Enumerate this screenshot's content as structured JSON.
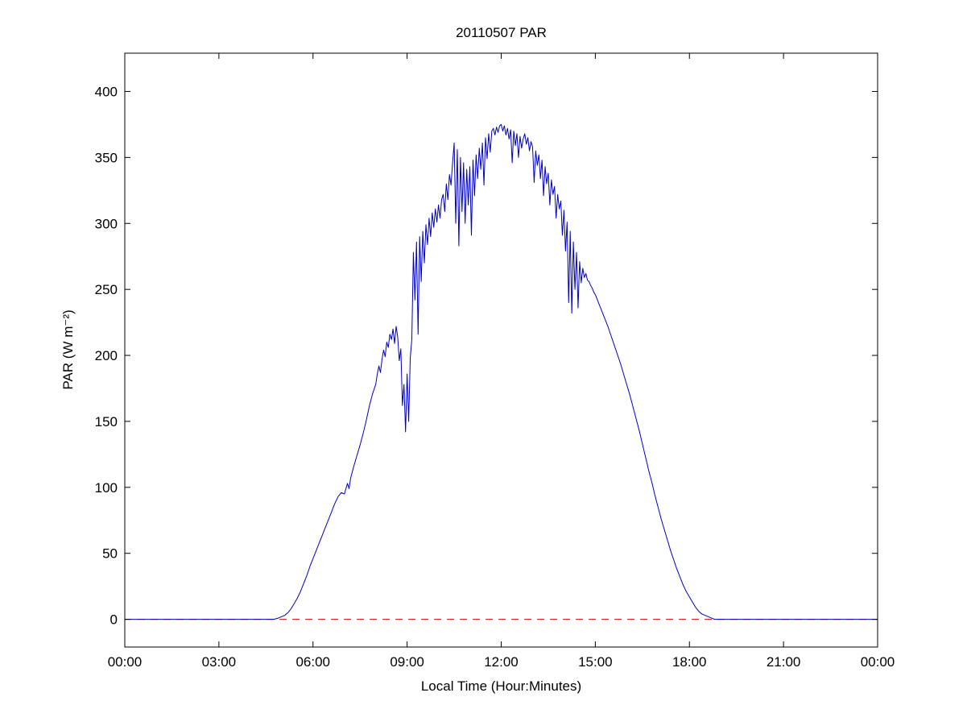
{
  "chart_data": {
    "type": "line",
    "title": "20110507 PAR",
    "xlabel": "Local Time (Hour:Minutes)",
    "ylabel": "PAR (W m⁻²)",
    "xlim": [
      0,
      24
    ],
    "ylim": [
      -21,
      429
    ],
    "grid": false,
    "legend": "none",
    "x_ticks": [
      0,
      3,
      6,
      9,
      12,
      15,
      18,
      21,
      24
    ],
    "x_tick_labels": [
      "00:00",
      "03:00",
      "06:00",
      "09:00",
      "12:00",
      "15:00",
      "18:00",
      "21:00",
      "00:00"
    ],
    "y_ticks": [
      0,
      50,
      100,
      150,
      200,
      250,
      300,
      350,
      400
    ],
    "y_tick_labels": [
      "0",
      "50",
      "100",
      "150",
      "200",
      "250",
      "300",
      "350",
      "400"
    ],
    "reference_lines": [
      {
        "y": 0,
        "color": "#dd0000",
        "style": "dashed",
        "name": "zero-line"
      }
    ],
    "series": [
      {
        "name": "PAR",
        "color": "#0000c0",
        "x_units": "hours",
        "points": [
          [
            0,
            0
          ],
          [
            0.25,
            0
          ],
          [
            0.5,
            0
          ],
          [
            0.75,
            0
          ],
          [
            1,
            0
          ],
          [
            1.25,
            0
          ],
          [
            1.5,
            0
          ],
          [
            1.75,
            0
          ],
          [
            2,
            0
          ],
          [
            2.25,
            0
          ],
          [
            2.5,
            0
          ],
          [
            2.75,
            0
          ],
          [
            3,
            0
          ],
          [
            3.25,
            0
          ],
          [
            3.5,
            0
          ],
          [
            3.75,
            0
          ],
          [
            4,
            0
          ],
          [
            4.25,
            0
          ],
          [
            4.5,
            0
          ],
          [
            4.75,
            0
          ],
          [
            4.9,
            1
          ],
          [
            5,
            2
          ],
          [
            5.1,
            3
          ],
          [
            5.2,
            5
          ],
          [
            5.3,
            8
          ],
          [
            5.4,
            12
          ],
          [
            5.5,
            16
          ],
          [
            5.6,
            21
          ],
          [
            5.7,
            27
          ],
          [
            5.8,
            33
          ],
          [
            5.9,
            40
          ],
          [
            6,
            46
          ],
          [
            6.1,
            52
          ],
          [
            6.2,
            58
          ],
          [
            6.3,
            64
          ],
          [
            6.4,
            70
          ],
          [
            6.5,
            76
          ],
          [
            6.6,
            82
          ],
          [
            6.7,
            88
          ],
          [
            6.8,
            93
          ],
          [
            6.9,
            96
          ],
          [
            7,
            95
          ],
          [
            7.1,
            103
          ],
          [
            7.15,
            99
          ],
          [
            7.2,
            107
          ],
          [
            7.3,
            116
          ],
          [
            7.4,
            124
          ],
          [
            7.5,
            132
          ],
          [
            7.6,
            141
          ],
          [
            7.7,
            151
          ],
          [
            7.8,
            162
          ],
          [
            7.9,
            171
          ],
          [
            8,
            178
          ],
          [
            8.05,
            186
          ],
          [
            8.1,
            192
          ],
          [
            8.15,
            187
          ],
          [
            8.2,
            197
          ],
          [
            8.25,
            204
          ],
          [
            8.3,
            199
          ],
          [
            8.35,
            210
          ],
          [
            8.4,
            206
          ],
          [
            8.45,
            216
          ],
          [
            8.5,
            212
          ],
          [
            8.55,
            220
          ],
          [
            8.6,
            209
          ],
          [
            8.65,
            222
          ],
          [
            8.7,
            214
          ],
          [
            8.75,
            196
          ],
          [
            8.8,
            205
          ],
          [
            8.85,
            162
          ],
          [
            8.9,
            178
          ],
          [
            8.95,
            142
          ],
          [
            9,
            186
          ],
          [
            9.05,
            150
          ],
          [
            9.1,
            198
          ],
          [
            9.15,
            212
          ],
          [
            9.2,
            278
          ],
          [
            9.25,
            242
          ],
          [
            9.3,
            286
          ],
          [
            9.35,
            216
          ],
          [
            9.4,
            290
          ],
          [
            9.45,
            256
          ],
          [
            9.5,
            294
          ],
          [
            9.55,
            270
          ],
          [
            9.6,
            299
          ],
          [
            9.65,
            284
          ],
          [
            9.7,
            304
          ],
          [
            9.75,
            290
          ],
          [
            9.8,
            308
          ],
          [
            9.85,
            297
          ],
          [
            9.9,
            311
          ],
          [
            9.95,
            301
          ],
          [
            10,
            314
          ],
          [
            10.05,
            304
          ],
          [
            10.1,
            318
          ],
          [
            10.15,
            322
          ],
          [
            10.2,
            309
          ],
          [
            10.25,
            330
          ],
          [
            10.3,
            318
          ],
          [
            10.35,
            337
          ],
          [
            10.4,
            329
          ],
          [
            10.45,
            346
          ],
          [
            10.5,
            361
          ],
          [
            10.55,
            300
          ],
          [
            10.6,
            356
          ],
          [
            10.65,
            283
          ],
          [
            10.7,
            350
          ],
          [
            10.75,
            309
          ],
          [
            10.8,
            346
          ],
          [
            10.85,
            300
          ],
          [
            10.9,
            341
          ],
          [
            10.95,
            314
          ],
          [
            11,
            343
          ],
          [
            11.05,
            291
          ],
          [
            11.1,
            348
          ],
          [
            11.15,
            321
          ],
          [
            11.2,
            352
          ],
          [
            11.25,
            334
          ],
          [
            11.3,
            357
          ],
          [
            11.35,
            341
          ],
          [
            11.4,
            361
          ],
          [
            11.45,
            329
          ],
          [
            11.5,
            365
          ],
          [
            11.55,
            349
          ],
          [
            11.6,
            368
          ],
          [
            11.65,
            354
          ],
          [
            11.7,
            370
          ],
          [
            11.75,
            372
          ],
          [
            11.8,
            367
          ],
          [
            11.85,
            373
          ],
          [
            11.9,
            369
          ],
          [
            11.95,
            374
          ],
          [
            12,
            375
          ],
          [
            12.05,
            370
          ],
          [
            12.1,
            374
          ],
          [
            12.15,
            367
          ],
          [
            12.2,
            372
          ],
          [
            12.25,
            364
          ],
          [
            12.3,
            371
          ],
          [
            12.35,
            346
          ],
          [
            12.4,
            370
          ],
          [
            12.45,
            359
          ],
          [
            12.5,
            368
          ],
          [
            12.55,
            350
          ],
          [
            12.6,
            366
          ],
          [
            12.65,
            357
          ],
          [
            12.7,
            364
          ],
          [
            12.75,
            368
          ],
          [
            12.8,
            360
          ],
          [
            12.85,
            365
          ],
          [
            12.9,
            355
          ],
          [
            12.95,
            362
          ],
          [
            13,
            358
          ],
          [
            13.05,
            331
          ],
          [
            13.1,
            355
          ],
          [
            13.15,
            344
          ],
          [
            13.2,
            352
          ],
          [
            13.25,
            334
          ],
          [
            13.3,
            348
          ],
          [
            13.35,
            321
          ],
          [
            13.4,
            343
          ],
          [
            13.45,
            330
          ],
          [
            13.5,
            338
          ],
          [
            13.55,
            314
          ],
          [
            13.6,
            333
          ],
          [
            13.65,
            322
          ],
          [
            13.7,
            328
          ],
          [
            13.75,
            304
          ],
          [
            13.8,
            322
          ],
          [
            13.85,
            311
          ],
          [
            13.9,
            317
          ],
          [
            13.95,
            291
          ],
          [
            14,
            310
          ],
          [
            14.05,
            279
          ],
          [
            14.1,
            301
          ],
          [
            14.15,
            240
          ],
          [
            14.2,
            294
          ],
          [
            14.25,
            232
          ],
          [
            14.3,
            286
          ],
          [
            14.35,
            250
          ],
          [
            14.4,
            278
          ],
          [
            14.45,
            236
          ],
          [
            14.5,
            271
          ],
          [
            14.55,
            255
          ],
          [
            14.6,
            266
          ],
          [
            14.65,
            259
          ],
          [
            14.7,
            262
          ],
          [
            14.75,
            257
          ],
          [
            14.8,
            256
          ],
          [
            14.85,
            253
          ],
          [
            14.9,
            251
          ],
          [
            14.95,
            248
          ],
          [
            15,
            246
          ],
          [
            15.1,
            240
          ],
          [
            15.2,
            234
          ],
          [
            15.3,
            228
          ],
          [
            15.4,
            222
          ],
          [
            15.5,
            215
          ],
          [
            15.6,
            208
          ],
          [
            15.7,
            201
          ],
          [
            15.8,
            194
          ],
          [
            15.9,
            186
          ],
          [
            16,
            178
          ],
          [
            16.1,
            170
          ],
          [
            16.2,
            161
          ],
          [
            16.3,
            152
          ],
          [
            16.4,
            143
          ],
          [
            16.5,
            133
          ],
          [
            16.6,
            123
          ],
          [
            16.7,
            113
          ],
          [
            16.8,
            104
          ],
          [
            16.9,
            94
          ],
          [
            17,
            85
          ],
          [
            17.1,
            76
          ],
          [
            17.2,
            68
          ],
          [
            17.3,
            60
          ],
          [
            17.4,
            52
          ],
          [
            17.5,
            45
          ],
          [
            17.6,
            38
          ],
          [
            17.7,
            32
          ],
          [
            17.8,
            26
          ],
          [
            17.9,
            21
          ],
          [
            18,
            17
          ],
          [
            18.1,
            13
          ],
          [
            18.2,
            9
          ],
          [
            18.3,
            6
          ],
          [
            18.4,
            4
          ],
          [
            18.5,
            3
          ],
          [
            18.6,
            2
          ],
          [
            18.7,
            1
          ],
          [
            18.8,
            0
          ],
          [
            19,
            0
          ],
          [
            19.25,
            0
          ],
          [
            19.5,
            0
          ],
          [
            19.75,
            0
          ],
          [
            20,
            0
          ],
          [
            20.5,
            0
          ],
          [
            21,
            0
          ],
          [
            21.5,
            0
          ],
          [
            22,
            0
          ],
          [
            22.5,
            0
          ],
          [
            23,
            0
          ],
          [
            23.5,
            0
          ],
          [
            24,
            0
          ]
        ]
      }
    ]
  }
}
